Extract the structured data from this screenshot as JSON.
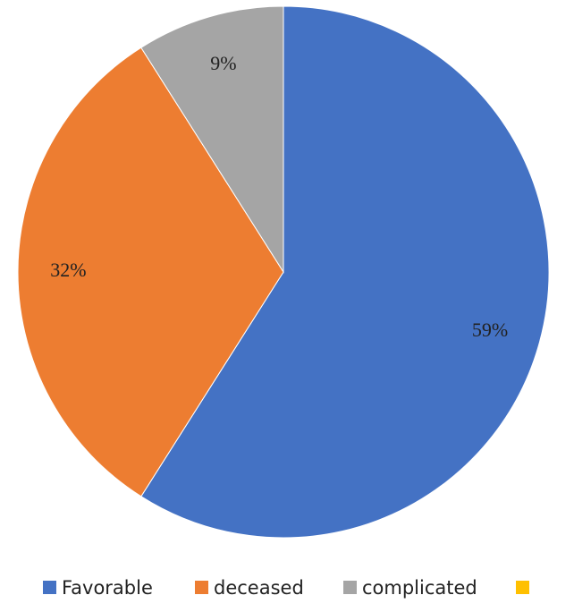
{
  "chart_data": {
    "type": "pie",
    "categories": [
      "Favorable",
      "deceased",
      "complicated",
      null
    ],
    "values": [
      59,
      32,
      9,
      0
    ],
    "value_labels": [
      "59%",
      "32%",
      "9%",
      null
    ],
    "colors": [
      "#4472c4",
      "#ed7d31",
      "#a5a5a5",
      "#ffc000"
    ],
    "legend": "bottom"
  }
}
